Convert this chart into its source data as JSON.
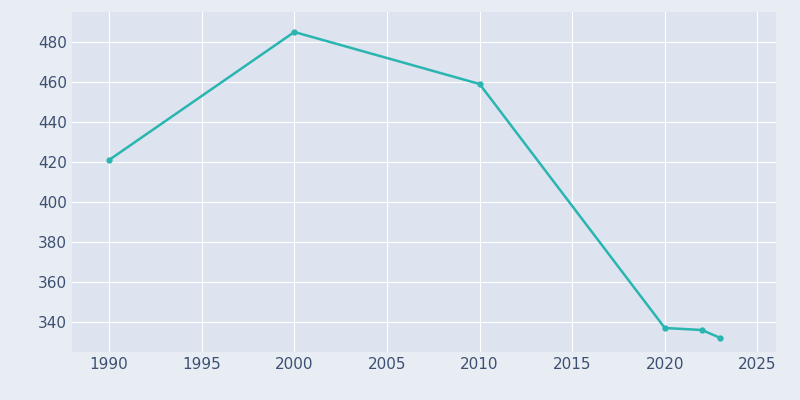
{
  "years": [
    1990,
    2000,
    2010,
    2020,
    2022,
    2023
  ],
  "population": [
    421,
    485,
    459,
    337,
    336,
    332
  ],
  "line_color": "#2ab5b0",
  "background_color": "#e8edf4",
  "plot_background": "#dde4ef",
  "xlim": [
    1988,
    2026
  ],
  "ylim": [
    325,
    495
  ],
  "xticks": [
    1990,
    1995,
    2000,
    2005,
    2010,
    2015,
    2020,
    2025
  ],
  "yticks": [
    340,
    360,
    380,
    400,
    420,
    440,
    460,
    480
  ],
  "grid_color": "#ffffff",
  "tick_color": "#3d4f72",
  "linewidth": 1.8,
  "marker": "o",
  "markersize": 3.5
}
